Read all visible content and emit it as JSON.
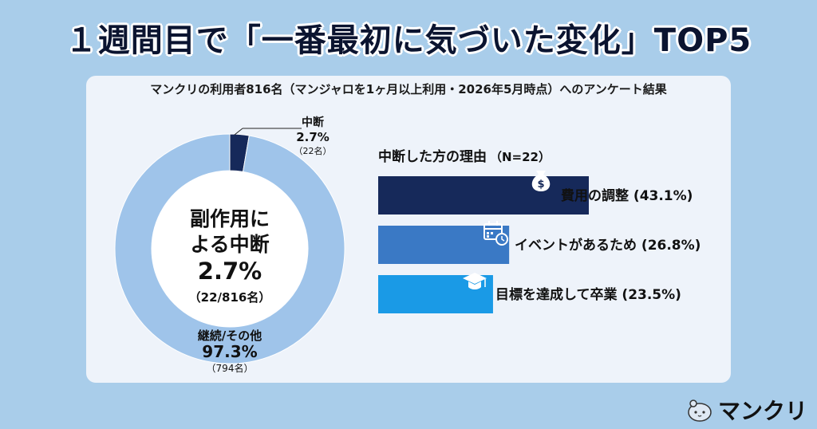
{
  "page_title": "１週間目で「一番最初に気づいた変化」TOP5",
  "subtitle": "マンクリの利用者816名（マンジャロを1ヶ月以上利用・2026年5月時点）へのアンケート結果",
  "brand": "マンクリ",
  "colors": {
    "background": "#a9cdea",
    "card": "#eef3fa",
    "donut_main": "#9fc4ea",
    "donut_stop": "#16295a",
    "bar1": "#16295a",
    "bar2": "#3a79c5",
    "bar3": "#1a9ae6"
  },
  "chart_data": [
    {
      "type": "pie",
      "center_label": {
        "line1": "副作用に",
        "line2": "よる中断",
        "value": "2.7%",
        "count": "（22/816名）"
      },
      "slices": [
        {
          "label": "中断",
          "value": 2.7,
          "value_label": "2.7%",
          "count": "（22名）"
        },
        {
          "label": "継続/その他",
          "value": 97.3,
          "value_label": "97.3%",
          "count": "（794名）"
        }
      ]
    },
    {
      "type": "bar",
      "orientation": "horizontal",
      "title": "中断した方の理由",
      "title_note": "（N=22）",
      "categories": [
        "費用の調整",
        "イベントがあるため",
        "目標を達成して卒業"
      ],
      "values": [
        43.1,
        26.8,
        23.5
      ],
      "value_labels": [
        "(43.1%)",
        "(26.8%)",
        "(23.5%)"
      ],
      "icons": [
        "money-bag-icon",
        "calendar-clock-icon",
        "graduation-cap-icon"
      ]
    }
  ]
}
